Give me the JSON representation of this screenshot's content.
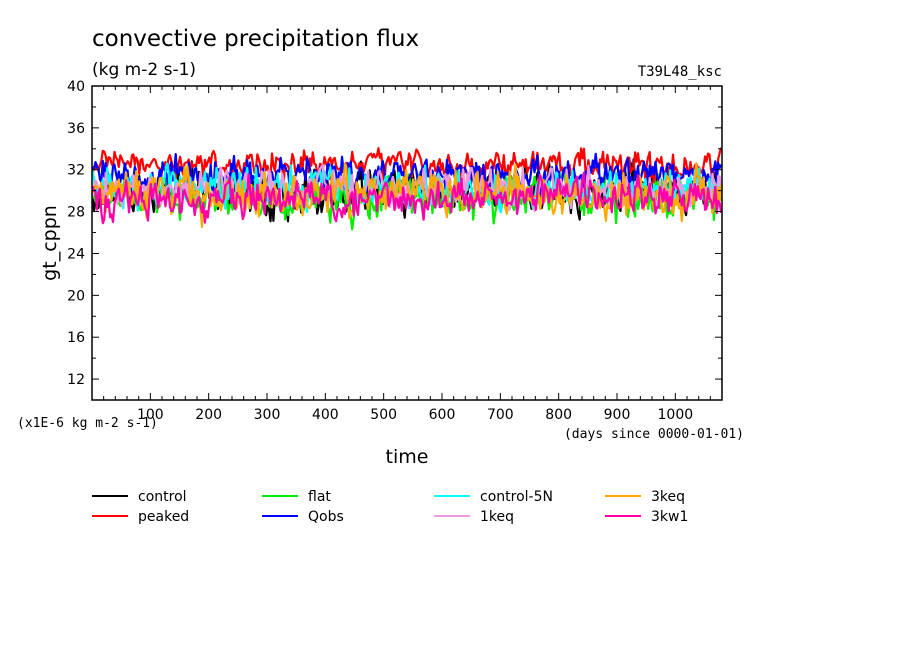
{
  "chart_data": {
    "type": "line",
    "title": "convective precipitation flux",
    "subtitle": "(kg m-2 s-1)",
    "run_label": "T39L48_ksc",
    "ylabel": "gt_cppn",
    "xlabel": "time",
    "x_units": "(days since 0000-01-01)",
    "y_scale_note": "(x1E-6 kg m-2 s-1)",
    "xlim": [
      0,
      1080
    ],
    "ylim": [
      10,
      40
    ],
    "x_ticks": [
      100,
      200,
      300,
      400,
      500,
      600,
      700,
      800,
      900,
      1000
    ],
    "y_ticks": [
      12,
      16,
      20,
      24,
      28,
      32,
      36,
      40
    ],
    "grid": false,
    "legend_position": "bottom",
    "series": [
      {
        "name": "control",
        "color": "#000000",
        "mean": 30.0,
        "amp": 2.0,
        "lo": 25.6,
        "hi": 33.8
      },
      {
        "name": "peaked",
        "color": "#ff0000",
        "mean": 32.4,
        "amp": 1.2,
        "lo": 30.0,
        "hi": 35.0
      },
      {
        "name": "flat",
        "color": "#00ee00",
        "mean": 29.5,
        "amp": 1.9,
        "lo": 25.0,
        "hi": 33.0
      },
      {
        "name": "Qobs",
        "color": "#0000ff",
        "mean": 31.6,
        "amp": 1.5,
        "lo": 28.5,
        "hi": 35.2
      },
      {
        "name": "control-5N",
        "color": "#00ffff",
        "mean": 30.2,
        "amp": 1.7,
        "lo": 26.5,
        "hi": 33.5
      },
      {
        "name": "1keq",
        "color": "#ee99dd",
        "mean": 30.2,
        "amp": 1.6,
        "lo": 27.0,
        "hi": 33.5
      },
      {
        "name": "3keq",
        "color": "#ffaa00",
        "mean": 29.6,
        "amp": 2.0,
        "lo": 25.2,
        "hi": 34.8
      },
      {
        "name": "3kw1",
        "color": "#ff00aa",
        "mean": 29.3,
        "amp": 1.7,
        "lo": 24.8,
        "hi": 33.0
      }
    ]
  }
}
